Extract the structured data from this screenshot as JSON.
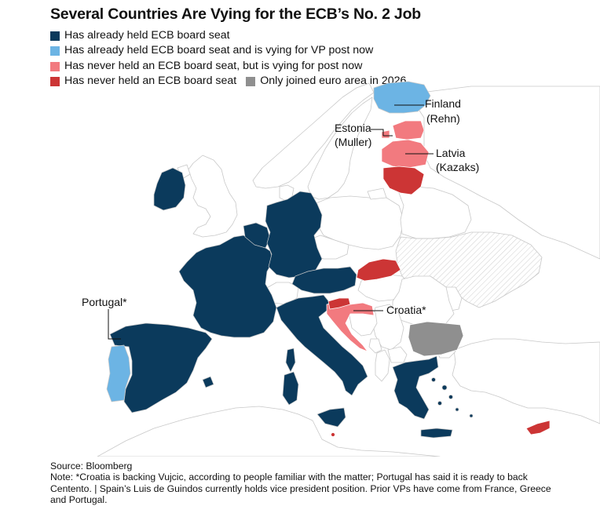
{
  "title": "Several Countries Are Vying for the ECB’s No. 2 Job",
  "colors": {
    "held": "#0b3a5c",
    "held_vying": "#6cb4e4",
    "never_vying": "#f27a7f",
    "never": "#cc3535",
    "joined_2026": "#8f8f8f",
    "other": "#ffffff",
    "border": "#c8c8c8",
    "sea": "#ffffff"
  },
  "legend": [
    {
      "key": "held",
      "label": "Has already held ECB board seat"
    },
    {
      "key": "held_vying",
      "label": "Has already held ECB board seat and is vying for VP post now"
    },
    {
      "key": "never_vying",
      "label": "Has never held an ECB board seat, but is vying for post now"
    },
    {
      "key": "never",
      "label": "Has never held an ECB board seat"
    },
    {
      "key": "joined_2026",
      "label": "Only joined euro area in 2026"
    }
  ],
  "annotations": {
    "finland": {
      "country": "Finland",
      "person": "(Rehn)"
    },
    "estonia": {
      "country": "Estonia",
      "person": "(Muller)"
    },
    "latvia": {
      "country": "Latvia",
      "person": "(Kazaks)"
    },
    "portugal": "Portugal*",
    "croatia": "Croatia*"
  },
  "footer": {
    "source": "Source: Bloomberg",
    "note": "Note: *Croatia is backing Vujcic, according to people familiar with the matter; Portugal has said it is ready to back Centento. | Spain’s Luis de Guindos currently holds vice president position. Prior VPs have come from France, Greece and Portugal."
  }
}
